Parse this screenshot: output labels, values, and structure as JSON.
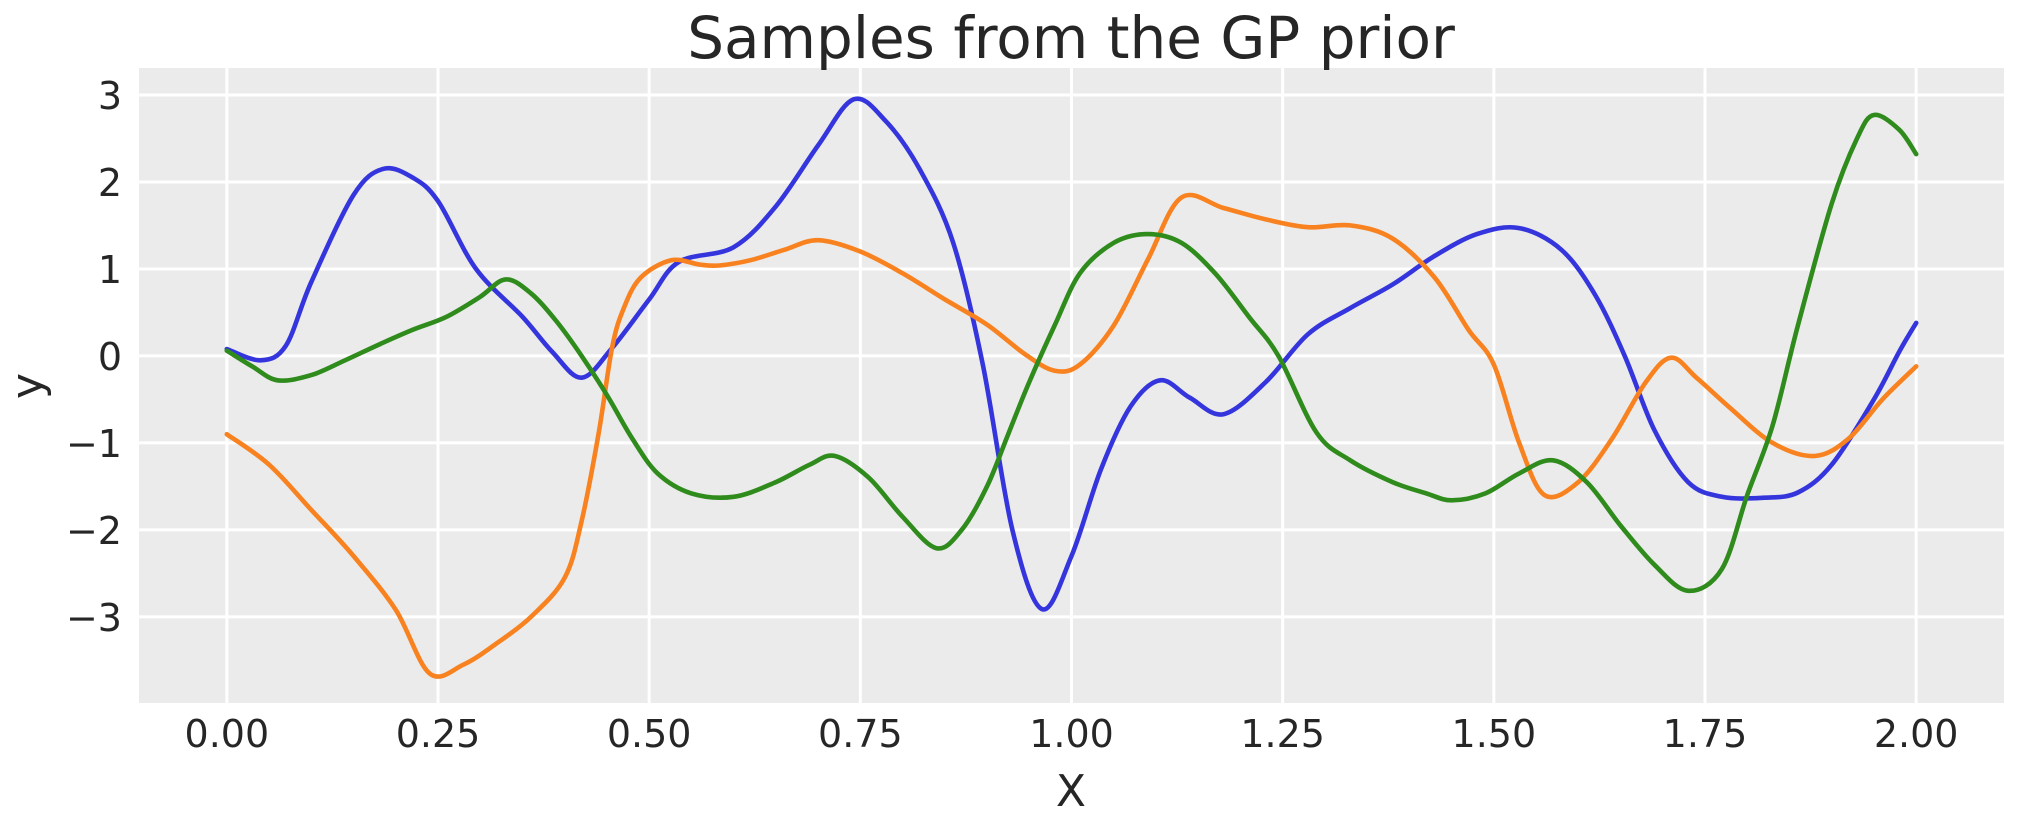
{
  "chart_data": {
    "type": "line",
    "title": "Samples from the GP prior",
    "xlabel": "X",
    "ylabel": "y",
    "xlim": [
      -0.104,
      2.104
    ],
    "ylim": [
      -3.99,
      3.31
    ],
    "grid": true,
    "legend": "none",
    "background_color": "#ebebeb",
    "grid_color": "#ffffff",
    "text_color": "#262626",
    "x_ticks": {
      "values": [
        0.0,
        0.25,
        0.5,
        0.75,
        1.0,
        1.25,
        1.5,
        1.75,
        2.0
      ],
      "labels": [
        "0.00",
        "0.25",
        "0.50",
        "0.75",
        "1.00",
        "1.25",
        "1.50",
        "1.75",
        "2.00"
      ]
    },
    "y_ticks": {
      "values": [
        -3,
        -2,
        -1,
        0,
        1,
        2,
        3
      ],
      "labels": [
        "−3",
        "−2",
        "−1",
        "0",
        "1",
        "2",
        "3"
      ]
    },
    "series": [
      {
        "name": "sample-1-blue",
        "color": "#3535dd",
        "x": [
          0,
          0.04,
          0.07,
          0.1,
          0.15,
          0.185,
          0.22,
          0.25,
          0.295,
          0.35,
          0.385,
          0.42,
          0.456,
          0.5,
          0.535,
          0.6,
          0.65,
          0.7,
          0.742,
          0.78,
          0.82,
          0.86,
          0.895,
          0.93,
          0.965,
          1.0,
          1.035,
          1.07,
          1.105,
          1.14,
          1.18,
          1.23,
          1.28,
          1.33,
          1.38,
          1.43,
          1.48,
          1.53,
          1.58,
          1.62,
          1.655,
          1.69,
          1.73,
          1.77,
          1.82,
          1.86,
          1.9,
          1.95,
          1.98,
          2.0
        ],
        "y": [
          0.08,
          -0.05,
          0.12,
          0.85,
          1.85,
          2.15,
          2.05,
          1.78,
          1.0,
          0.45,
          0.05,
          -0.25,
          0.09,
          0.65,
          1.08,
          1.25,
          1.72,
          2.42,
          2.95,
          2.7,
          2.15,
          1.3,
          -0.1,
          -2.0,
          -2.91,
          -2.3,
          -1.3,
          -0.58,
          -0.28,
          -0.48,
          -0.67,
          -0.3,
          0.25,
          0.55,
          0.82,
          1.15,
          1.4,
          1.47,
          1.22,
          0.7,
          0.0,
          -0.85,
          -1.45,
          -1.62,
          -1.63,
          -1.57,
          -1.25,
          -0.5,
          0.05,
          0.38
        ]
      },
      {
        "name": "sample-2-orange",
        "color": "#f8821f",
        "x": [
          0,
          0.05,
          0.1,
          0.15,
          0.2,
          0.24,
          0.28,
          0.32,
          0.36,
          0.4,
          0.42,
          0.44,
          0.456,
          0.47,
          0.49,
          0.526,
          0.56,
          0.583,
          0.62,
          0.66,
          0.7,
          0.75,
          0.8,
          0.85,
          0.9,
          0.945,
          0.98,
          1.01,
          1.05,
          1.09,
          1.13,
          1.18,
          1.23,
          1.28,
          1.33,
          1.38,
          1.43,
          1.47,
          1.5,
          1.53,
          1.56,
          1.6,
          1.64,
          1.68,
          1.71,
          1.74,
          1.78,
          1.83,
          1.88,
          1.92,
          1.96,
          2.0
        ],
        "y": [
          -0.9,
          -1.25,
          -1.77,
          -2.3,
          -2.92,
          -3.65,
          -3.55,
          -3.3,
          -3.0,
          -2.55,
          -1.9,
          -0.9,
          0.09,
          0.55,
          0.9,
          1.1,
          1.05,
          1.04,
          1.1,
          1.22,
          1.33,
          1.2,
          0.95,
          0.65,
          0.36,
          0.02,
          -0.17,
          -0.1,
          0.35,
          1.1,
          1.82,
          1.7,
          1.57,
          1.48,
          1.5,
          1.35,
          0.9,
          0.3,
          -0.1,
          -1.0,
          -1.6,
          -1.45,
          -0.95,
          -0.3,
          -0.02,
          -0.25,
          -0.6,
          -1.0,
          -1.15,
          -0.95,
          -0.5,
          -0.12
        ]
      },
      {
        "name": "sample-3-green",
        "color": "#2e8b1c",
        "x": [
          0,
          0.03,
          0.06,
          0.1,
          0.14,
          0.18,
          0.22,
          0.26,
          0.3,
          0.33,
          0.36,
          0.39,
          0.42,
          0.45,
          0.48,
          0.51,
          0.55,
          0.6,
          0.65,
          0.69,
          0.72,
          0.76,
          0.8,
          0.84,
          0.87,
          0.9,
          0.925,
          0.95,
          0.98,
          1.01,
          1.05,
          1.09,
          1.13,
          1.17,
          1.21,
          1.245,
          1.29,
          1.33,
          1.38,
          1.42,
          1.45,
          1.49,
          1.53,
          1.57,
          1.61,
          1.65,
          1.69,
          1.73,
          1.77,
          1.8,
          1.83,
          1.86,
          1.9,
          1.93,
          1.95,
          1.98,
          2.0
        ],
        "y": [
          0.06,
          -0.12,
          -0.28,
          -0.22,
          -0.05,
          0.13,
          0.3,
          0.45,
          0.68,
          0.88,
          0.72,
          0.4,
          0.0,
          -0.45,
          -0.95,
          -1.35,
          -1.58,
          -1.62,
          -1.45,
          -1.25,
          -1.15,
          -1.4,
          -1.85,
          -2.21,
          -2.0,
          -1.5,
          -0.9,
          -0.3,
          0.35,
          0.95,
          1.3,
          1.4,
          1.3,
          0.95,
          0.45,
          0.0,
          -0.88,
          -1.2,
          -1.45,
          -1.58,
          -1.66,
          -1.58,
          -1.35,
          -1.2,
          -1.45,
          -1.95,
          -2.4,
          -2.7,
          -2.45,
          -1.6,
          -0.8,
          0.35,
          1.75,
          2.5,
          2.77,
          2.6,
          2.32
        ]
      }
    ]
  }
}
